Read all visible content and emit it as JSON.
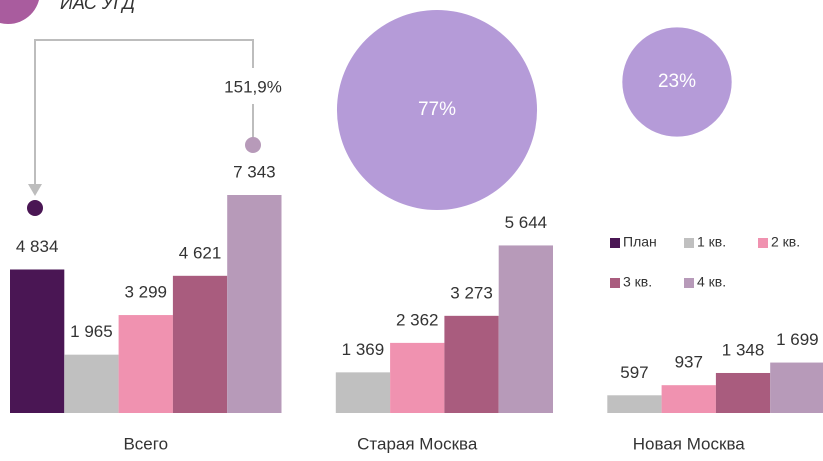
{
  "header": {
    "title": "ИАС УГД"
  },
  "chart_data": [
    {
      "type": "bar",
      "categories": [
        "Всего",
        "Старая Москва",
        "Новая Москва"
      ],
      "series": [
        {
          "name": "План",
          "color": "#4a1654",
          "values": [
            4834,
            null,
            null
          ],
          "value_labels": [
            "4 834",
            null,
            null
          ]
        },
        {
          "name": "1 кв.",
          "color": "#c0c0c0",
          "values": [
            1965,
            1369,
            597
          ],
          "value_labels": [
            "1 965",
            "1 369",
            "597"
          ]
        },
        {
          "name": "2 кв.",
          "color": "#f092b0",
          "values": [
            3299,
            2362,
            937
          ],
          "value_labels": [
            "3 299",
            "2 362",
            "937"
          ]
        },
        {
          "name": "3 кв.",
          "color": "#a95c7e",
          "values": [
            4621,
            3273,
            1348
          ],
          "value_labels": [
            "4 621",
            "3 273",
            "1 348"
          ]
        },
        {
          "name": "4 кв.",
          "color": "#b79ab9",
          "values": [
            7343,
            5644,
            1699
          ],
          "value_labels": [
            "7 343",
            "5 644",
            "1 699"
          ]
        }
      ],
      "annotations": [
        "151,9%"
      ],
      "legend": "right"
    },
    {
      "type": "bubble",
      "color": "#b59bd8",
      "values": [
        77,
        23
      ],
      "value_labels": [
        "77%",
        "23%"
      ]
    }
  ]
}
